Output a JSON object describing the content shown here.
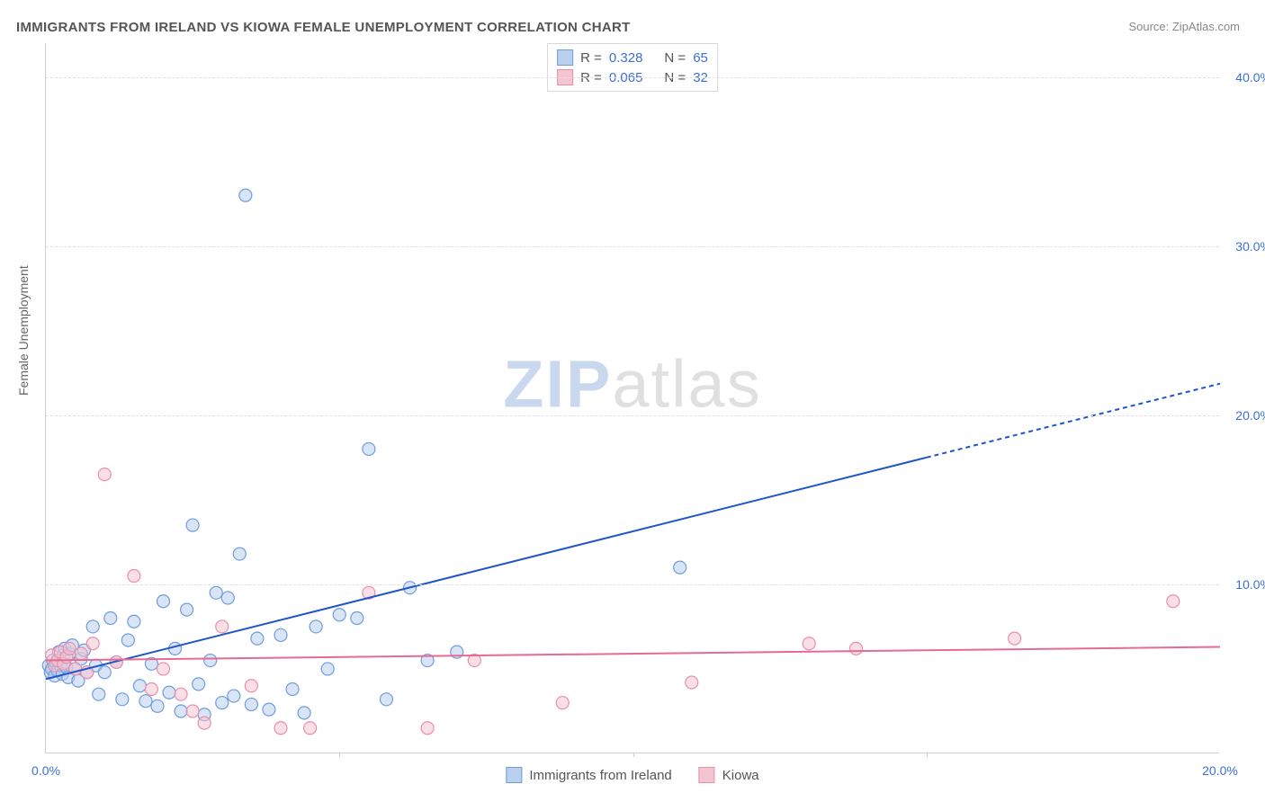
{
  "title": "IMMIGRANTS FROM IRELAND VS KIOWA FEMALE UNEMPLOYMENT CORRELATION CHART",
  "source": "Source: ZipAtlas.com",
  "y_axis_label": "Female Unemployment",
  "watermark_zip": "ZIP",
  "watermark_atlas": "atlas",
  "chart": {
    "type": "scatter",
    "x_domain": [
      0,
      20
    ],
    "y_domain": [
      0,
      42
    ],
    "background_color": "#ffffff",
    "grid_color": "#e0e0e0",
    "axis_color": "#d0d0d0",
    "tick_color": "#3b6fd6",
    "y_ticks": [
      {
        "v": 10,
        "label": "10.0%"
      },
      {
        "v": 20,
        "label": "20.0%"
      },
      {
        "v": 30,
        "label": "30.0%"
      },
      {
        "v": 40,
        "label": "40.0%"
      }
    ],
    "x_ticks_major": [
      5,
      10,
      15
    ],
    "x_tick_labels": [
      {
        "v": 0,
        "label": "0.0%"
      },
      {
        "v": 20,
        "label": "20.0%"
      }
    ],
    "marker_radius": 7,
    "marker_stroke_width": 1.2,
    "series": [
      {
        "name": "Immigrants from Ireland",
        "fill": "#b9d0ef",
        "stroke": "#6f9cdc",
        "fill_opacity": 0.55,
        "r": 0.328,
        "n": 65,
        "trend": {
          "x0": 0,
          "y0": 4.4,
          "x1": 15.0,
          "y1": 17.5,
          "x_extend": 20,
          "color": "#1f55c9",
          "width": 2,
          "dash_extend": "5,4"
        },
        "points": [
          [
            0.05,
            5.2
          ],
          [
            0.08,
            4.8
          ],
          [
            0.1,
            5.0
          ],
          [
            0.12,
            5.5
          ],
          [
            0.15,
            4.6
          ],
          [
            0.18,
            5.3
          ],
          [
            0.2,
            4.9
          ],
          [
            0.22,
            6.0
          ],
          [
            0.25,
            5.2
          ],
          [
            0.28,
            4.7
          ],
          [
            0.3,
            5.8
          ],
          [
            0.32,
            6.2
          ],
          [
            0.35,
            5.1
          ],
          [
            0.38,
            4.5
          ],
          [
            0.4,
            5.9
          ],
          [
            0.45,
            6.4
          ],
          [
            0.5,
            5.0
          ],
          [
            0.55,
            4.3
          ],
          [
            0.6,
            5.6
          ],
          [
            0.65,
            6.1
          ],
          [
            0.7,
            4.8
          ],
          [
            0.8,
            7.5
          ],
          [
            0.85,
            5.2
          ],
          [
            0.9,
            3.5
          ],
          [
            1.0,
            4.8
          ],
          [
            1.1,
            8.0
          ],
          [
            1.2,
            5.4
          ],
          [
            1.3,
            3.2
          ],
          [
            1.4,
            6.7
          ],
          [
            1.5,
            7.8
          ],
          [
            1.6,
            4.0
          ],
          [
            1.7,
            3.1
          ],
          [
            1.8,
            5.3
          ],
          [
            1.9,
            2.8
          ],
          [
            2.0,
            9.0
          ],
          [
            2.1,
            3.6
          ],
          [
            2.2,
            6.2
          ],
          [
            2.3,
            2.5
          ],
          [
            2.4,
            8.5
          ],
          [
            2.5,
            13.5
          ],
          [
            2.6,
            4.1
          ],
          [
            2.7,
            2.3
          ],
          [
            2.8,
            5.5
          ],
          [
            2.9,
            9.5
          ],
          [
            3.0,
            3.0
          ],
          [
            3.1,
            9.2
          ],
          [
            3.2,
            3.4
          ],
          [
            3.3,
            11.8
          ],
          [
            3.4,
            33.0
          ],
          [
            3.5,
            2.9
          ],
          [
            3.6,
            6.8
          ],
          [
            3.8,
            2.6
          ],
          [
            4.0,
            7.0
          ],
          [
            4.2,
            3.8
          ],
          [
            4.4,
            2.4
          ],
          [
            4.6,
            7.5
          ],
          [
            4.8,
            5.0
          ],
          [
            5.0,
            8.2
          ],
          [
            5.3,
            8.0
          ],
          [
            5.5,
            18.0
          ],
          [
            5.8,
            3.2
          ],
          [
            6.2,
            9.8
          ],
          [
            6.5,
            5.5
          ],
          [
            7.0,
            6.0
          ],
          [
            10.8,
            11.0
          ]
        ]
      },
      {
        "name": "Kiowa",
        "fill": "#f5c4d1",
        "stroke": "#e890ab",
        "fill_opacity": 0.55,
        "r": 0.065,
        "n": 32,
        "trend": {
          "x0": 0,
          "y0": 5.5,
          "x1": 20,
          "y1": 6.3,
          "color": "#e56b92",
          "width": 2
        },
        "points": [
          [
            0.1,
            5.8
          ],
          [
            0.15,
            5.2
          ],
          [
            0.2,
            5.5
          ],
          [
            0.25,
            6.0
          ],
          [
            0.3,
            5.3
          ],
          [
            0.35,
            5.7
          ],
          [
            0.4,
            6.2
          ],
          [
            0.5,
            5.0
          ],
          [
            0.6,
            5.9
          ],
          [
            0.7,
            4.8
          ],
          [
            0.8,
            6.5
          ],
          [
            1.0,
            16.5
          ],
          [
            1.2,
            5.4
          ],
          [
            1.5,
            10.5
          ],
          [
            1.8,
            3.8
          ],
          [
            2.0,
            5.0
          ],
          [
            2.3,
            3.5
          ],
          [
            2.5,
            2.5
          ],
          [
            2.7,
            1.8
          ],
          [
            3.0,
            7.5
          ],
          [
            3.5,
            4.0
          ],
          [
            4.0,
            1.5
          ],
          [
            4.5,
            1.5
          ],
          [
            5.5,
            9.5
          ],
          [
            6.5,
            1.5
          ],
          [
            7.3,
            5.5
          ],
          [
            8.8,
            3.0
          ],
          [
            11.0,
            4.2
          ],
          [
            13.0,
            6.5
          ],
          [
            13.8,
            6.2
          ],
          [
            16.5,
            6.8
          ],
          [
            19.2,
            9.0
          ]
        ]
      }
    ]
  },
  "legend_top": {
    "rows": [
      {
        "swatch_fill": "#b9d0ef",
        "swatch_stroke": "#6f9cdc",
        "r_label": "R  =",
        "r_val": "0.328",
        "n_label": "N  =",
        "n_val": "65"
      },
      {
        "swatch_fill": "#f5c4d1",
        "swatch_stroke": "#e890ab",
        "r_label": "R  =",
        "r_val": "0.065",
        "n_label": "N  =",
        "n_val": "32"
      }
    ]
  },
  "legend_bottom": {
    "items": [
      {
        "swatch_fill": "#b9d0ef",
        "swatch_stroke": "#6f9cdc",
        "label": "Immigrants from Ireland"
      },
      {
        "swatch_fill": "#f5c4d1",
        "swatch_stroke": "#e890ab",
        "label": "Kiowa"
      }
    ]
  }
}
